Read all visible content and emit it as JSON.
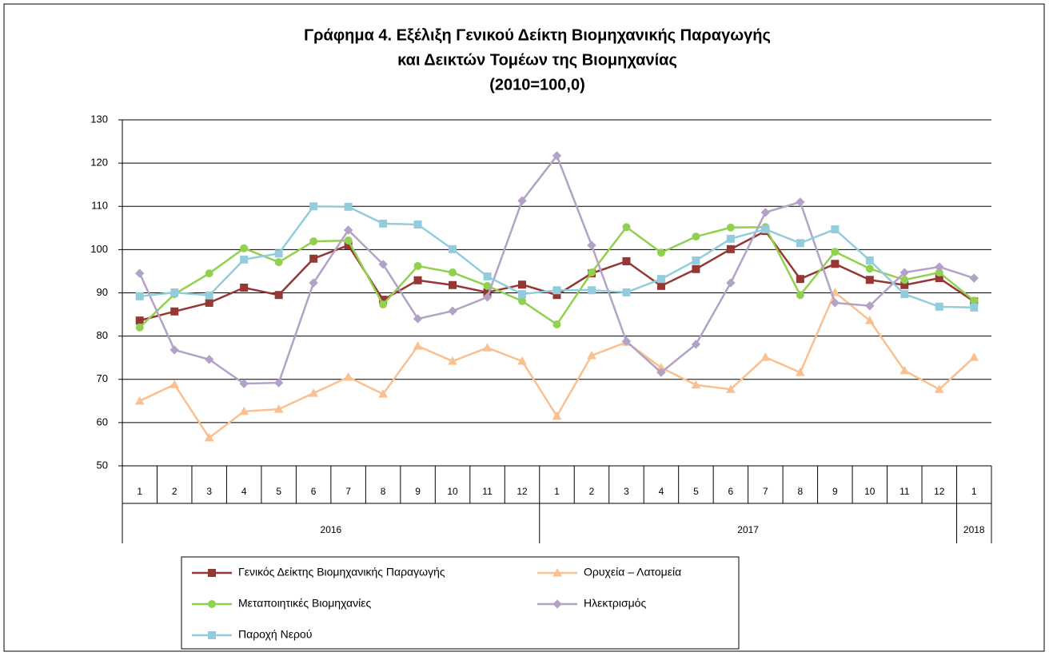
{
  "chart_data": {
    "type": "line",
    "title": [
      "Γράφημα 4. Εξέλιξη Γενικού Δείκτη Βιομηχανικής Παραγωγής",
      "και Δεικτών Τομέων της Βιομηχανίας",
      "(2010=100,0)"
    ],
    "groups": [
      {
        "label": "2016",
        "categories": [
          "1",
          "2",
          "3",
          "4",
          "5",
          "6",
          "7",
          "8",
          "9",
          "10",
          "11",
          "12"
        ]
      },
      {
        "label": "2017",
        "categories": [
          "1",
          "2",
          "3",
          "4",
          "5",
          "6",
          "7",
          "8",
          "9",
          "10",
          "11",
          "12"
        ]
      },
      {
        "label": "2018",
        "categories": [
          "1"
        ]
      }
    ],
    "ylim": [
      50,
      130
    ],
    "yticks": [
      50,
      60,
      70,
      80,
      90,
      100,
      110,
      120,
      130
    ],
    "grid": true,
    "series": [
      {
        "name": "Γενικός Δείκτης Βιομηχανικής Παραγωγής",
        "color": "#953735",
        "marker": "square",
        "values": [
          83.6,
          85.7,
          87.7,
          91.2,
          89.5,
          97.9,
          101.0,
          88.4,
          92.9,
          91.8,
          90.1,
          91.9,
          89.5,
          94.5,
          97.3,
          91.6,
          95.5,
          100.1,
          104.3,
          93.2,
          96.7,
          93.0,
          91.8,
          93.4,
          88.0
        ]
      },
      {
        "name": "Ορυχεία – Λατομεία",
        "color": "#FAC090",
        "marker": "triangle",
        "values": [
          65.0,
          68.8,
          56.5,
          62.6,
          63.1,
          66.8,
          70.5,
          66.6,
          77.7,
          74.2,
          77.3,
          74.2,
          61.5,
          75.5,
          78.6,
          72.7,
          68.7,
          67.7,
          75.1,
          71.6,
          90.1,
          83.6,
          72.0,
          67.7,
          75.1
        ]
      },
      {
        "name": "Μεταποιητικές Βιομηχανίες",
        "color": "#92D050",
        "marker": "circle",
        "values": [
          82.0,
          89.7,
          94.5,
          100.3,
          97.1,
          101.9,
          102.1,
          87.3,
          96.2,
          94.7,
          91.6,
          88.1,
          82.7,
          94.7,
          105.2,
          99.3,
          103.0,
          105.1,
          105.2,
          89.5,
          99.5,
          95.6,
          93.0,
          94.7,
          88.2
        ]
      },
      {
        "name": "Ηλεκτρισμός",
        "color": "#B3A2C7",
        "marker": "diamond",
        "values": [
          94.5,
          76.8,
          74.6,
          69.0,
          69.2,
          92.3,
          104.5,
          96.6,
          84.0,
          85.8,
          89.0,
          111.3,
          121.7,
          101.0,
          78.8,
          71.6,
          78.1,
          92.3,
          108.6,
          111.0,
          87.7,
          87.0,
          94.7,
          96.0,
          93.4
        ]
      },
      {
        "name": "Παροχή Νερού",
        "color": "#93CDDD",
        "marker": "square",
        "values": [
          89.2,
          90.1,
          89.4,
          97.7,
          99.1,
          110.0,
          109.9,
          106.0,
          105.8,
          100.1,
          93.8,
          89.7,
          90.6,
          90.6,
          90.1,
          93.2,
          97.5,
          102.5,
          104.7,
          101.5,
          104.7,
          97.5,
          89.7,
          86.8,
          86.6
        ]
      }
    ]
  }
}
